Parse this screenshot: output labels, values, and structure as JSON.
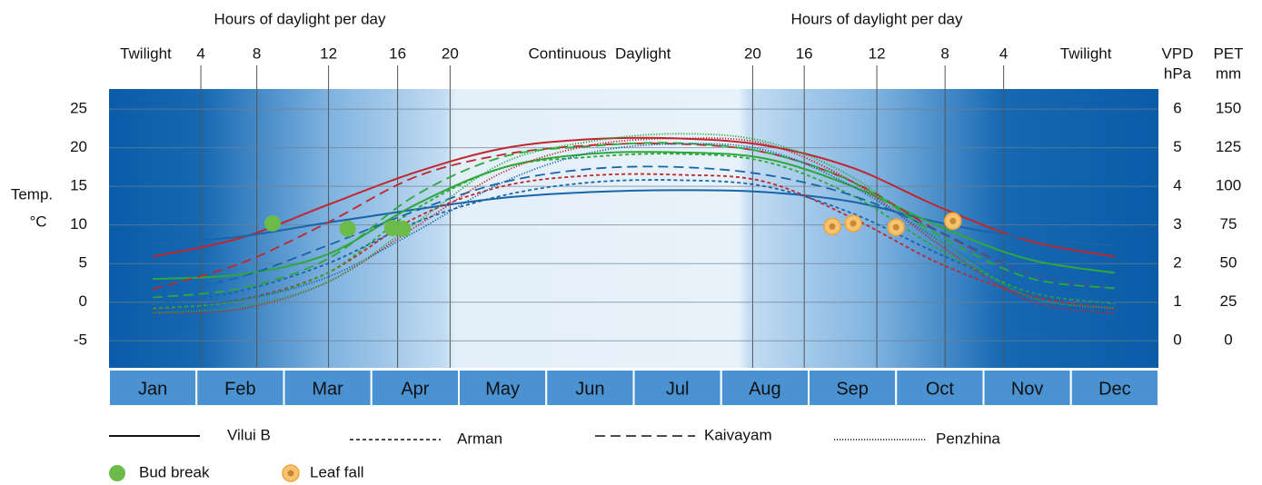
{
  "chart_data": {
    "type": "line",
    "categories": [
      "Jan",
      "Feb",
      "Mar",
      "Apr",
      "May",
      "Jun",
      "Jul",
      "Aug",
      "Sep",
      "Oct",
      "Nov",
      "Dec"
    ],
    "top_axis": {
      "title": "Hours of daylight per day",
      "ticks": [
        {
          "value": 1.05,
          "label": "4"
        },
        {
          "value": 1.69,
          "label": "8"
        },
        {
          "value": 2.51,
          "label": "12"
        },
        {
          "value": 3.3,
          "label": "16"
        },
        {
          "value": 3.9,
          "label": "20"
        },
        {
          "value": 7.36,
          "label": "20"
        },
        {
          "value": 7.95,
          "label": "16"
        },
        {
          "value": 8.78,
          "label": "12"
        },
        {
          "value": 9.56,
          "label": "8"
        },
        {
          "value": 10.23,
          "label": "4"
        }
      ],
      "region_labels": [
        {
          "value": 0.42,
          "label": "Twilight"
        },
        {
          "value": 5.61,
          "label": "Continuous  Daylight"
        },
        {
          "value": 11.17,
          "label": "Twilight"
        }
      ]
    },
    "xlim": [
      0,
      12
    ],
    "y_label": [
      "Temp.",
      "°C"
    ],
    "y_color": "#c0272d",
    "ylim": [
      -8.5,
      27.6
    ],
    "yticks": [
      -5,
      0,
      5,
      10,
      15,
      20,
      25
    ],
    "y2_label": [
      "VPD",
      "hPa"
    ],
    "y2_color": "#1a64a8",
    "y2lim": [
      -0.7,
      6.52
    ],
    "y2ticks": [
      0,
      1,
      2,
      3,
      4,
      5,
      6
    ],
    "y3_label": [
      "PET",
      "mm"
    ],
    "y3_color": "#2ea83a",
    "y3lim": [
      -17.5,
      163
    ],
    "y3ticks": [
      0,
      25,
      50,
      75,
      100,
      125,
      150
    ],
    "grid": true,
    "sites": [
      {
        "name": "Vilui B",
        "dash": "solid",
        "temp": [
          5.9,
          8.3,
          12.6,
          16.8,
          19.9,
          21.1,
          21.2,
          20.3,
          17.4,
          12.3,
          8.0,
          5.9
        ],
        "vpd": [
          2.5,
          2.7,
          3.06,
          3.4,
          3.7,
          3.85,
          3.9,
          3.85,
          3.6,
          3.06,
          2.66,
          2.47
        ],
        "pet": [
          40,
          43,
          56,
          88,
          112,
          121,
          122,
          118,
          100,
          74,
          53,
          44
        ]
      },
      {
        "name": "Arman",
        "dash": "short",
        "temp": [
          -0.9,
          0.3,
          3.8,
          10.9,
          15,
          16.4,
          16.5,
          15.6,
          10.9,
          5,
          0.9,
          -0.9
        ],
        "vpd": [
          0.94,
          1.29,
          2,
          3.06,
          3.76,
          4.1,
          4.16,
          4,
          3.3,
          2.24,
          1.34,
          1.0
        ],
        "pet": [
          21,
          26,
          44,
          85,
          112,
          119,
          121,
          116,
          94,
          59,
          32,
          24
        ]
      },
      {
        "name": "Kaivayam",
        "dash": "long",
        "temp": [
          1.7,
          5,
          10.3,
          16.2,
          19.1,
          20.3,
          20.5,
          19.4,
          15.6,
          9.1,
          3.8,
          1.7
        ],
        "vpd": [
          1.18,
          1.65,
          2.47,
          3.36,
          4.1,
          4.45,
          4.5,
          4.3,
          3.76,
          2.82,
          1.76,
          1.34
        ],
        "pet": [
          28,
          34,
          53,
          94,
          119,
          126,
          128,
          122,
          103,
          68,
          41,
          34
        ]
      },
      {
        "name": "Penzhina",
        "dash": "dotted",
        "temp": [
          -1.5,
          -0.9,
          2.6,
          9.7,
          16.8,
          20.3,
          21.2,
          20.5,
          15.6,
          7.4,
          0.3,
          -1.5
        ],
        "vpd": [
          0.87,
          1.06,
          1.65,
          2.82,
          4.1,
          4.87,
          5.1,
          4.94,
          4.0,
          2.59,
          1.29,
          0.94
        ],
        "pet": [
          18,
          22,
          38,
          76,
          115,
          129,
          134,
          129,
          106,
          65,
          29,
          21
        ]
      }
    ],
    "events": [
      {
        "name": "Bud break",
        "color": "#6cbb4a",
        "x": [
          1.87,
          2.73,
          3.24,
          3.36
        ],
        "values": [
          10.2,
          9.5,
          9.6,
          9.5
        ]
      },
      {
        "name": "Leaf fall",
        "color": "#f7c46e",
        "x": [
          8.27,
          8.51,
          9.0,
          9.65
        ],
        "values": [
          9.8,
          10.2,
          9.7,
          10.5
        ]
      }
    ]
  }
}
